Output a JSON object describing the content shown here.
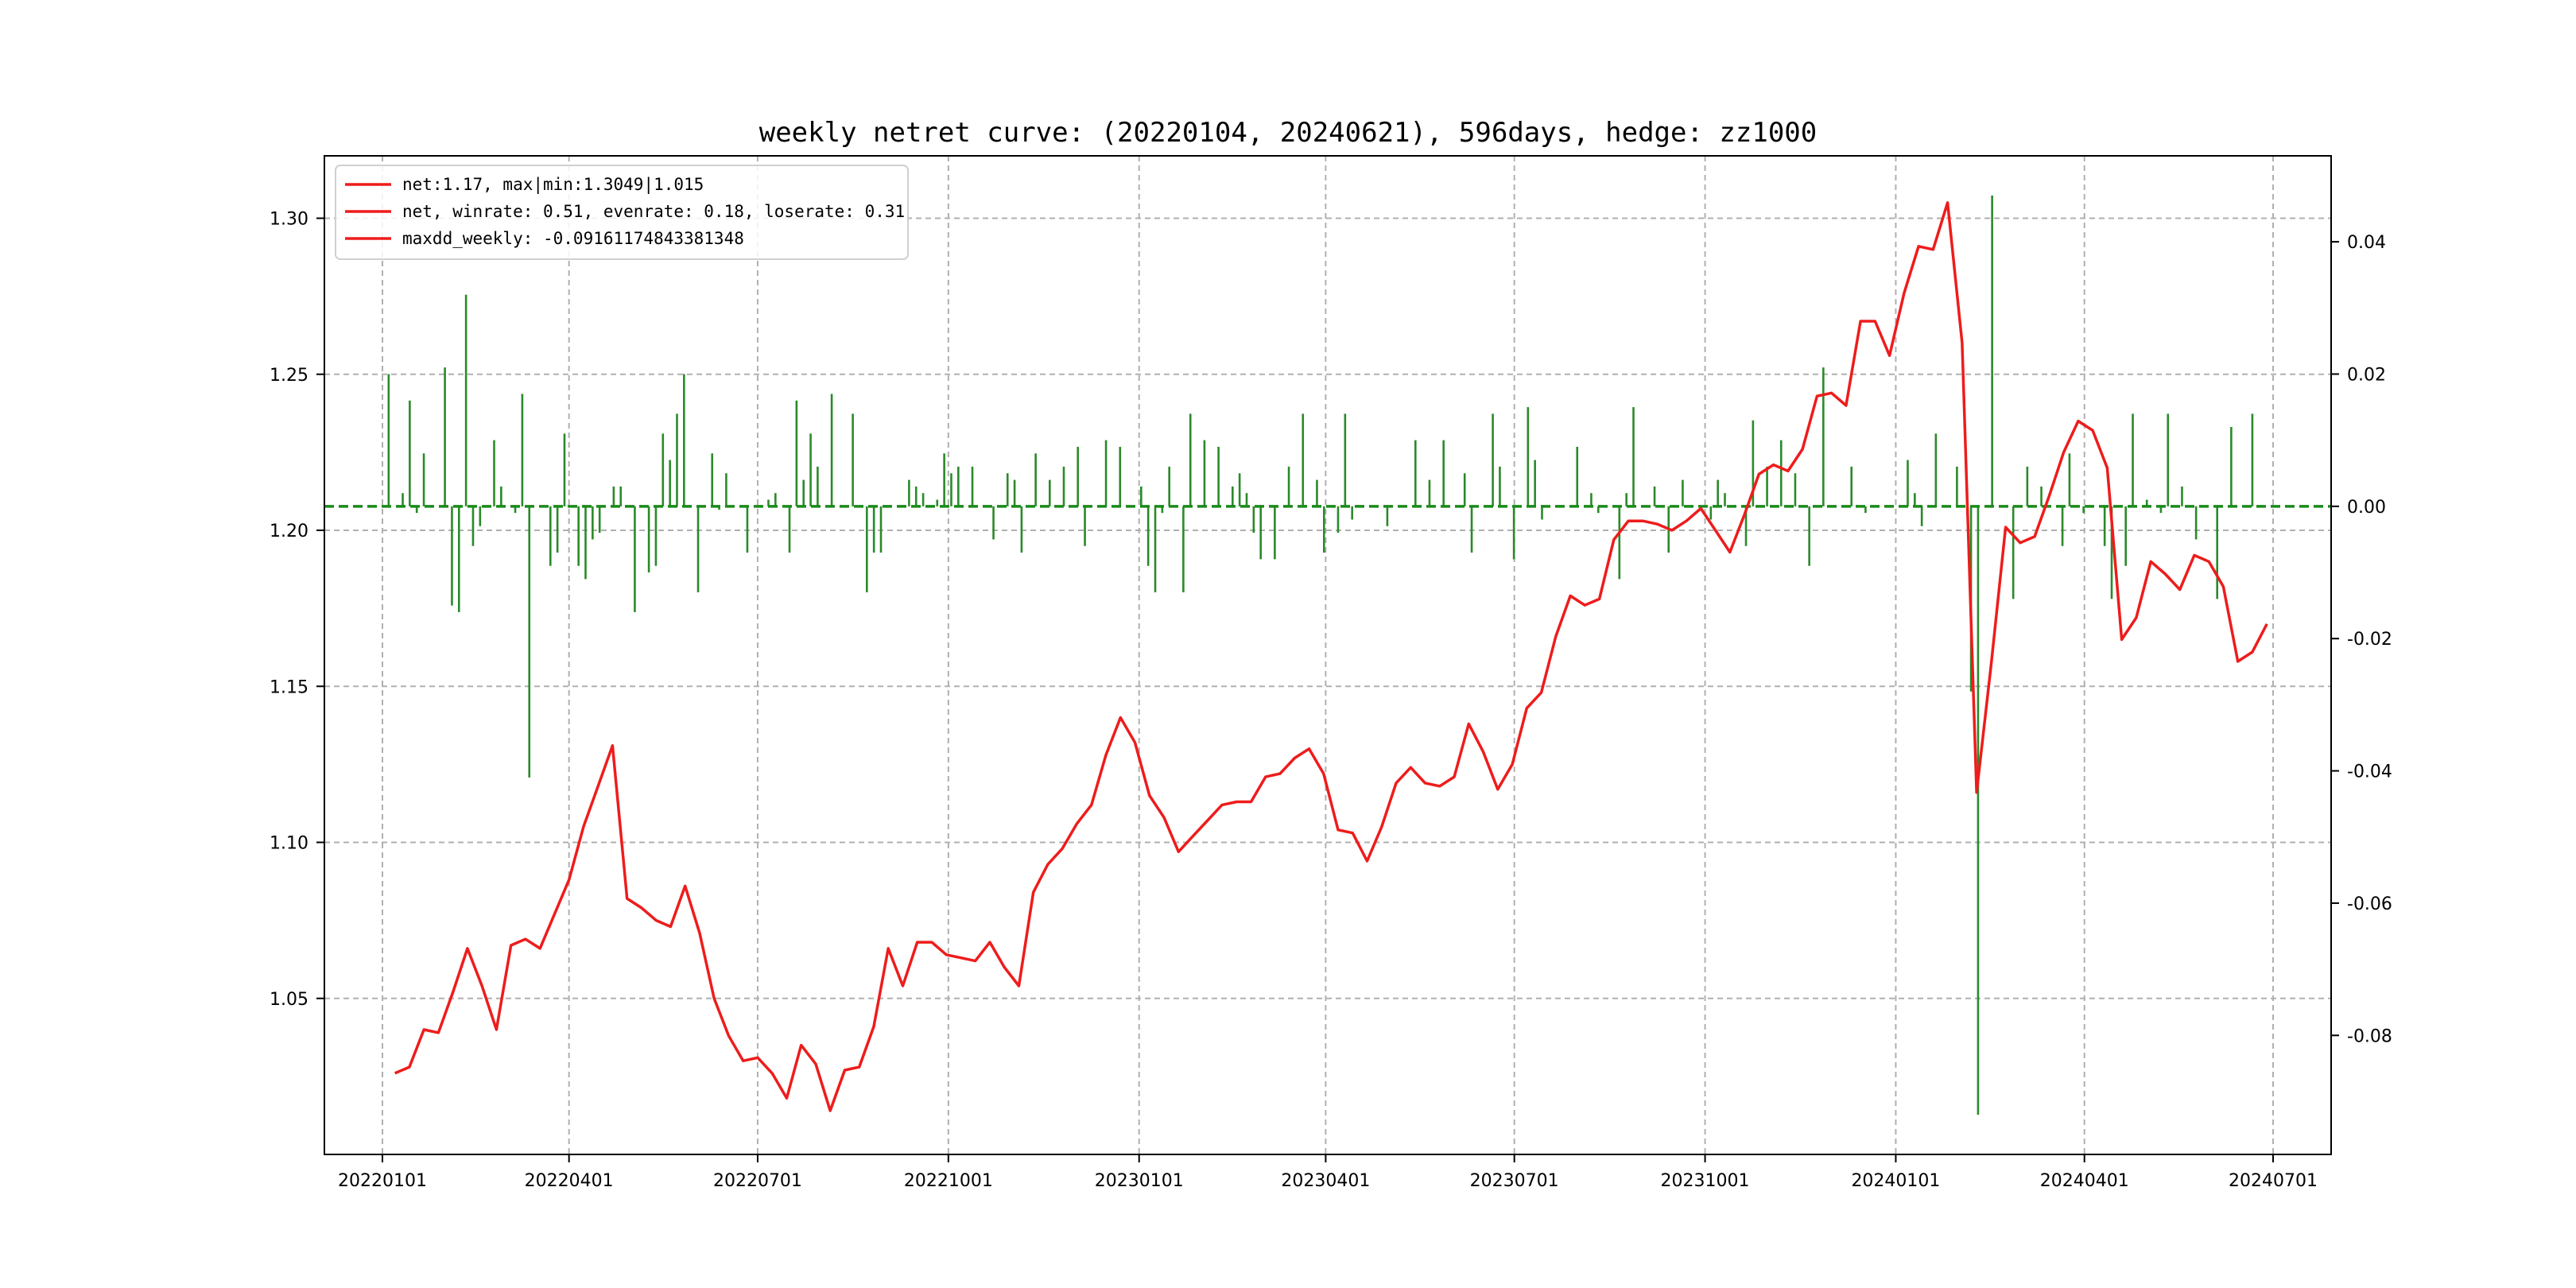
{
  "chart_data": {
    "type": "line",
    "title": "weekly netret curve: (20220104, 20240621), 596days, hedge: zz1000",
    "x_tick_labels": [
      "20220101",
      "20220401",
      "20220701",
      "20221001",
      "20230101",
      "20230401",
      "20230701",
      "20231001",
      "20240101",
      "20240401",
      "20240701"
    ],
    "x_ticks": [
      "2022-01-01",
      "2022-04-01",
      "2022-07-01",
      "2022-10-01",
      "2023-01-01",
      "2023-04-01",
      "2023-07-01",
      "2023-10-01",
      "2024-01-01",
      "2024-04-01",
      "2024-07-01"
    ],
    "xlim": [
      "2021-12-04",
      "2024-07-29"
    ],
    "ylim_left": [
      1.0,
      1.32
    ],
    "yticks_left": [
      "1.05",
      "1.10",
      "1.15",
      "1.20",
      "1.25",
      "1.30"
    ],
    "ylim_right": [
      -0.098,
      0.053
    ],
    "yticks_right": [
      "-0.08",
      "-0.06",
      "-0.04",
      "-0.02",
      "0.00",
      "0.02",
      "0.04"
    ],
    "grid": true,
    "legend_position": "top-left",
    "legend": [
      "net:1.17, max|min:1.3049|1.015",
      "net, winrate: 0.51, evenrate: 0.18, loserate: 0.31",
      "maxdd_weekly: -0.09161174843381348"
    ],
    "line_color": "#ee1c1c",
    "bar_color": "#2a8a2a",
    "zero_line_color": "#1a8a1a",
    "start_date": "2022-01-07",
    "series": [
      {
        "axis": "left",
        "values": [
          1.026,
          1.028,
          1.04,
          1.039,
          1.052,
          1.066,
          1.054,
          1.04,
          1.067,
          1.069,
          1.066,
          1.077,
          1.088,
          1.105,
          1.118,
          1.131,
          1.082,
          1.079,
          1.075,
          1.073,
          1.086,
          1.071,
          1.05,
          1.038,
          1.03,
          1.031,
          1.026,
          1.018,
          1.035,
          1.029,
          1.014,
          1.027,
          1.028,
          1.041,
          1.066,
          1.054,
          1.068,
          1.068,
          1.064,
          1.063,
          1.062,
          1.068,
          1.06,
          1.054,
          1.084,
          1.093,
          1.098,
          1.106,
          1.112,
          1.128,
          1.14,
          1.132,
          1.115,
          1.108,
          1.097,
          1.102,
          1.107,
          1.112,
          1.113,
          1.113,
          1.121,
          1.122,
          1.127,
          1.13,
          1.122,
          1.104,
          1.103,
          1.094,
          1.105,
          1.119,
          1.124,
          1.119,
          1.118,
          1.121,
          1.138,
          1.129,
          1.117,
          1.125,
          1.143,
          1.148,
          1.166,
          1.179,
          1.176,
          1.178,
          1.197,
          1.203,
          1.203,
          1.202,
          1.2,
          1.203,
          1.207,
          1.2,
          1.193,
          1.205,
          1.218,
          1.221,
          1.219,
          1.226,
          1.243,
          1.244,
          1.24,
          1.267,
          1.267,
          1.256,
          1.276,
          1.291,
          1.29,
          1.305,
          1.26,
          1.116,
          1.157,
          1.201,
          1.196,
          1.198,
          1.211,
          1.225,
          1.235,
          1.232,
          1.22,
          1.165,
          1.172,
          1.19,
          1.186,
          1.181,
          1.192,
          1.19,
          1.182,
          1.158,
          1.161,
          1.17
        ]
      },
      {
        "axis": "right",
        "type": "bar",
        "values": [
          0.02,
          0.0,
          0.002,
          0.016,
          -0.001,
          0.008,
          0.0,
          0.0,
          0.021,
          -0.015,
          -0.016,
          0.032,
          -0.006,
          -0.003,
          0.0,
          0.01,
          0.003,
          0.0,
          -0.001,
          0.017,
          -0.041,
          0.0,
          0.0,
          -0.009,
          -0.007,
          0.011,
          0.0,
          -0.009,
          -0.011,
          -0.005,
          -0.004,
          0.0,
          0.003,
          0.003,
          0.0,
          -0.016,
          0.0,
          -0.01,
          -0.009,
          0.011,
          0.007,
          0.014,
          0.02,
          0.0,
          -0.013,
          0.0,
          0.008,
          -0.0005,
          0.005,
          0.0,
          0.0,
          -0.007,
          0.0,
          0.0,
          0.001,
          0.002,
          0.0,
          -0.007,
          0.016,
          0.004,
          0.011,
          0.006,
          0.0,
          0.017,
          0.0,
          0.0,
          0.014,
          0.0,
          -0.013,
          -0.007,
          -0.007,
          0.0,
          0.0,
          0.0,
          0.004,
          0.003,
          0.002,
          0.0,
          0.001,
          0.008,
          0.005,
          0.006,
          0.0,
          0.006,
          0.0,
          0.0,
          -0.005,
          0.0,
          0.005,
          0.004,
          -0.007,
          0.0,
          0.008,
          0.0,
          0.004,
          0.0,
          0.006,
          0.0,
          0.009,
          -0.006,
          0.0,
          0.0,
          0.01,
          0.0,
          0.009,
          0.0,
          0.0,
          0.003,
          -0.009,
          -0.013,
          -0.001,
          0.006,
          0.0,
          -0.013,
          0.014,
          0.0,
          0.01,
          0.0,
          0.009,
          0.0,
          0.003,
          0.005,
          0.002,
          -0.004,
          -0.008,
          0.0,
          -0.008,
          0.0,
          0.006,
          0.0,
          0.014,
          0.0,
          0.004,
          -0.007,
          0.0,
          -0.004,
          0.014,
          -0.002,
          0.0,
          0.0,
          0.0,
          0.0,
          -0.003,
          0.0,
          0.0,
          0.0,
          0.01,
          0.0,
          0.004,
          0.0,
          0.01,
          0.0,
          0.0,
          0.005,
          -0.007,
          0.0,
          0.0,
          0.014,
          0.006,
          0.0,
          -0.008,
          0.0,
          0.015,
          0.007,
          -0.002,
          0.0,
          0.0,
          0.0,
          0.0,
          0.009,
          0.0,
          0.002,
          -0.001,
          0.0,
          0.0,
          -0.011,
          0.002,
          0.015,
          0.0,
          0.0,
          0.003,
          0.0,
          -0.007,
          0.0,
          0.004,
          0.0,
          0.0,
          0.0,
          -0.002,
          0.004,
          0.002,
          0.0,
          0.0,
          -0.006,
          0.013,
          0.0,
          0.006,
          0.0,
          0.01,
          0.0,
          0.005,
          0.0,
          -0.009,
          0.0,
          0.021,
          0.0,
          0.0,
          0.0,
          0.006,
          0.0,
          -0.001,
          0.0,
          0.0,
          0.0,
          0.0,
          0.0,
          0.007,
          0.002,
          -0.003,
          0.0,
          0.011,
          0.0,
          0.0,
          0.006,
          0.0,
          -0.028,
          -0.092,
          0.0,
          0.047,
          0.0,
          0.0,
          -0.014,
          0.0,
          0.006,
          0.0,
          0.003,
          0.0,
          0.0,
          -0.006,
          0.008,
          0.0,
          -0.001,
          0.0,
          0.0,
          -0.006,
          -0.014,
          0.0,
          -0.009,
          0.014,
          0.0,
          0.001,
          0.0,
          -0.001,
          0.014,
          0.0,
          0.003,
          0.0,
          -0.005,
          0.0,
          0.0,
          -0.014,
          0.0,
          0.012,
          0.0,
          0.0,
          0.014
        ]
      }
    ]
  }
}
